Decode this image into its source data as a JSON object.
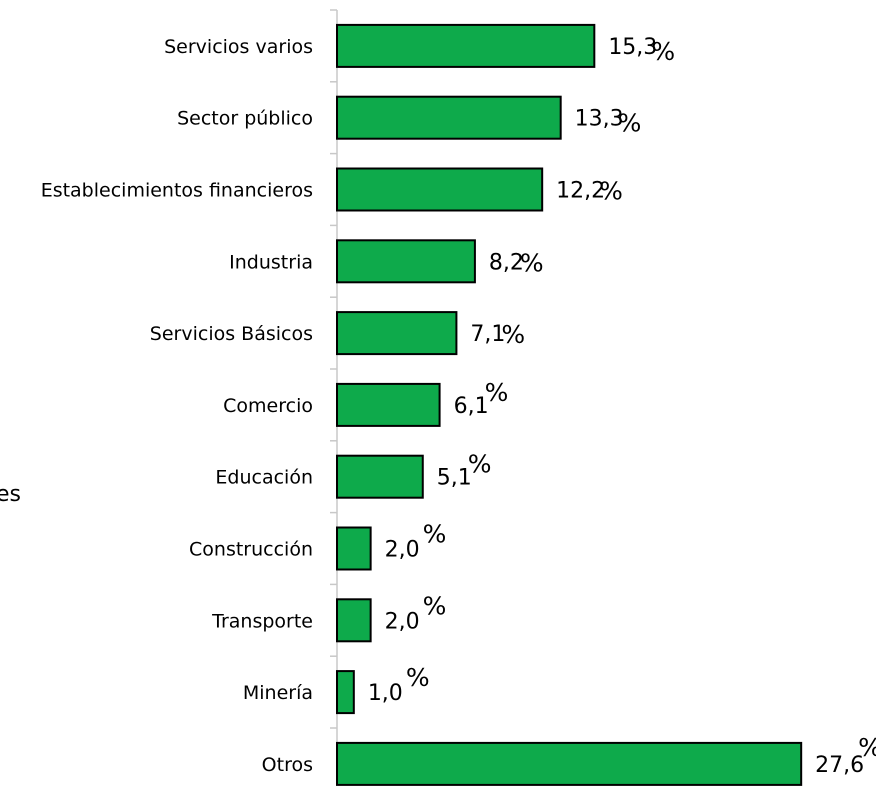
{
  "side_text": "es",
  "chart_data": {
    "type": "bar",
    "orientation": "horizontal",
    "categories": [
      "Servicios varios",
      "Sector público",
      "Establecimientos financieros",
      "Industria",
      "Servicios Básicos",
      "Comercio",
      "Educación",
      "Construcción",
      "Transporte",
      "Minería",
      "Otros"
    ],
    "values": [
      15.3,
      13.3,
      12.2,
      8.2,
      7.1,
      6.1,
      5.1,
      2.0,
      2.0,
      1.0,
      27.6
    ],
    "value_labels": [
      "15,3",
      "13,3",
      "12,2",
      "8,2",
      "7,1",
      "6,1",
      "5,1",
      "2,0",
      "2,0",
      "1,0",
      "27,6"
    ],
    "value_suffix": "%",
    "xlim": [
      0,
      28.6
    ],
    "bar_color": "#0eaa4b",
    "grid": false,
    "legend": "none"
  }
}
